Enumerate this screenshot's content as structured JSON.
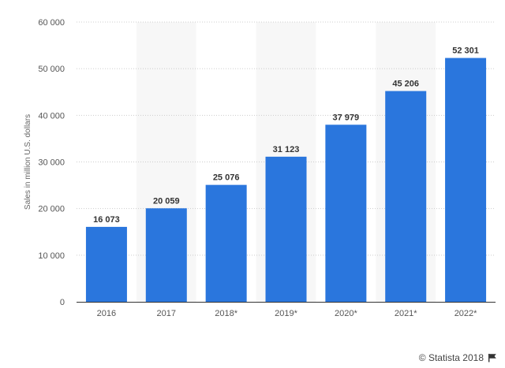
{
  "chart_data": {
    "type": "bar",
    "categories": [
      "2016",
      "2017",
      "2018*",
      "2019*",
      "2020*",
      "2021*",
      "2022*"
    ],
    "values": [
      16073,
      20059,
      25076,
      31123,
      37979,
      45206,
      52301
    ],
    "value_labels": [
      "16 073",
      "20 059",
      "25 076",
      "31 123",
      "37 979",
      "45 206",
      "52 301"
    ],
    "ylabel": "Sales in million U.S. dollars",
    "xlabel": "",
    "title": "",
    "ylim": [
      0,
      60000
    ],
    "yticks": [
      0,
      10000,
      20000,
      30000,
      40000,
      50000,
      60000
    ],
    "ytick_labels": [
      "0",
      "10 000",
      "20 000",
      "30 000",
      "40 000",
      "50 000",
      "60 000"
    ],
    "grid": true,
    "alternating_column_shading": true,
    "bar_color": "#2a76dd"
  },
  "footer": {
    "credit": "© Statista 2018",
    "icon": "flag-icon"
  }
}
